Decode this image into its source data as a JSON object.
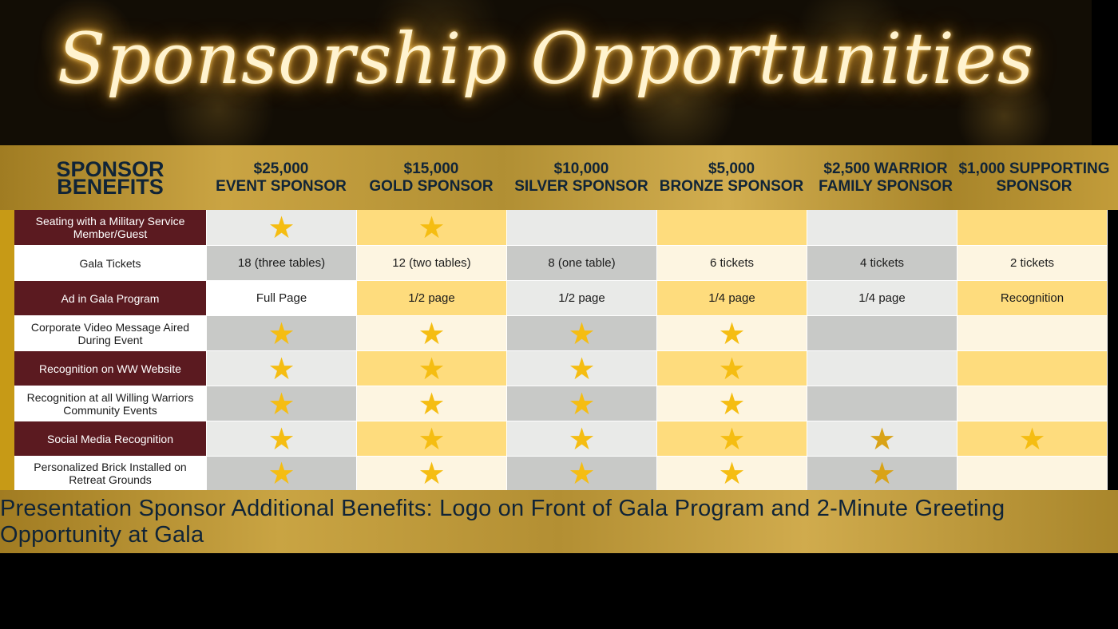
{
  "banner": {
    "title": "Sponsorship Opportunities"
  },
  "header": {
    "benefits_label": "SPONSOR BENEFITS",
    "tiers": [
      {
        "line1": "$25,000",
        "line2": "EVENT SPONSOR"
      },
      {
        "line1": "$15,000",
        "line2": "GOLD SPONSOR"
      },
      {
        "line1": "$10,000",
        "line2": "SILVER SPONSOR"
      },
      {
        "line1": "$5,000",
        "line2": "BRONZE SPONSOR"
      },
      {
        "line1": "$2,500 WARRIOR",
        "line2": "FAMILY SPONSOR"
      },
      {
        "line1": "$1,000 SUPPORTING",
        "line2": "SPONSOR"
      }
    ]
  },
  "rows": [
    {
      "label": "Seating with a Military Service Member/Guest",
      "cells": [
        "★",
        "★",
        "",
        "",
        "",
        ""
      ]
    },
    {
      "label": "Gala Tickets",
      "cells": [
        "18 (three tables)",
        "12 (two tables)",
        "8 (one table)",
        "6  tickets",
        "4  tickets",
        "2 tickets"
      ]
    },
    {
      "label": "Ad in Gala Program",
      "cells": [
        "Full Page",
        "1/2 page",
        "1/2 page",
        "1/4 page",
        "1/4 page",
        "Recognition"
      ]
    },
    {
      "label": "Corporate Video Message Aired During Event",
      "cells": [
        "★",
        "★",
        "★",
        "★",
        "",
        ""
      ]
    },
    {
      "label": "Recognition on WW Website",
      "cells": [
        "★",
        "★",
        "★",
        "★",
        "",
        ""
      ]
    },
    {
      "label": "Recognition at all Willing Warriors Community Events",
      "cells": [
        "★",
        "★",
        "★",
        "★",
        "",
        ""
      ]
    },
    {
      "label": "Social Media Recognition",
      "cells": [
        "★",
        "★",
        "★",
        "★",
        "★",
        "★"
      ]
    },
    {
      "label": "Personalized Brick Installed on Retreat Grounds",
      "cells": [
        "★",
        "★",
        "★",
        "★",
        "★",
        ""
      ]
    }
  ],
  "footer": {
    "text": "Presentation Sponsor Additional Benefits: Logo on Front of Gala Program and 2-Minute Greeting Opportunity at Gala"
  },
  "colors": {
    "maroon": "#5b1a20",
    "gold_band": "#c9a443",
    "navy_text": "#102437",
    "star": "#f5bd12",
    "light_gray": "#e9eae8",
    "gray": "#c8c9c7",
    "yellow": "#fedc7d",
    "cream": "#fdf5e1"
  }
}
